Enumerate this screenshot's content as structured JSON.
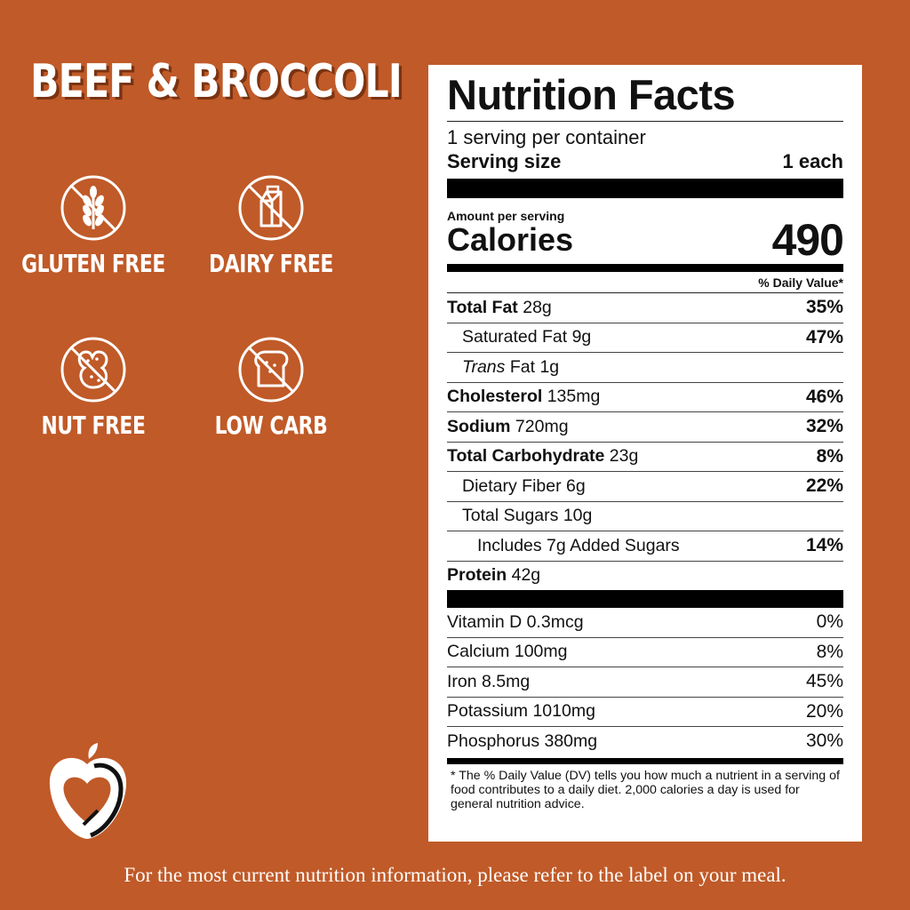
{
  "title": "BEEF & BROCCOLI",
  "badges": [
    {
      "label": "GLUTEN FREE",
      "icon": "no-wheat-icon"
    },
    {
      "label": "DAIRY FREE",
      "icon": "no-milk-carton-icon"
    },
    {
      "label": "NUT FREE",
      "icon": "no-peanut-icon"
    },
    {
      "label": "LOW CARB",
      "icon": "no-bread-icon"
    }
  ],
  "label": {
    "heading": "Nutrition Facts",
    "servings_per_container": "1 serving per container",
    "serving_size_label": "Serving size",
    "serving_size_value": "1 each",
    "amount_per_serving": "Amount per serving",
    "calories_label": "Calories",
    "calories_value": "490",
    "dv_header": "% Daily Value*",
    "nutrients": [
      {
        "name": "Total Fat",
        "amount": "28g",
        "dv": "35%"
      },
      {
        "name": "Saturated Fat",
        "amount": "9g",
        "dv": "47%"
      },
      {
        "name": "Trans",
        "name_suffix": "Fat",
        "amount": "1g",
        "dv": ""
      },
      {
        "name": "Cholesterol",
        "amount": "135mg",
        "dv": "46%"
      },
      {
        "name": "Sodium",
        "amount": "720mg",
        "dv": "32%"
      },
      {
        "name": "Total Carbohydrate",
        "amount": "23g",
        "dv": "8%"
      },
      {
        "name": "Dietary Fiber",
        "amount": "6g",
        "dv": "22%"
      },
      {
        "name": "Total Sugars",
        "amount": "10g",
        "dv": ""
      },
      {
        "name": "Includes 7g Added Sugars",
        "amount": "",
        "dv": "14%"
      },
      {
        "name": "Protein",
        "amount": "42g",
        "dv": ""
      }
    ],
    "vitamins": [
      {
        "name": "Vitamin D 0.3mcg",
        "dv": "0%"
      },
      {
        "name": "Calcium 100mg",
        "dv": "8%"
      },
      {
        "name": "Iron 8.5mg",
        "dv": "45%"
      },
      {
        "name": "Potassium 1010mg",
        "dv": "20%"
      },
      {
        "name": "Phosphorus 380mg",
        "dv": "30%"
      }
    ],
    "footnote": "* The % Daily Value (DV) tells you how much a nutrient in a serving of food contributes to a daily diet. 2,000 calories a day is used for general nutrition advice."
  },
  "footer": "For the most current nutrition information, please refer to the label on your meal.",
  "colors": {
    "background": "#c05a28",
    "title_shadow": "#7a3312",
    "panel": "#ffffff"
  }
}
